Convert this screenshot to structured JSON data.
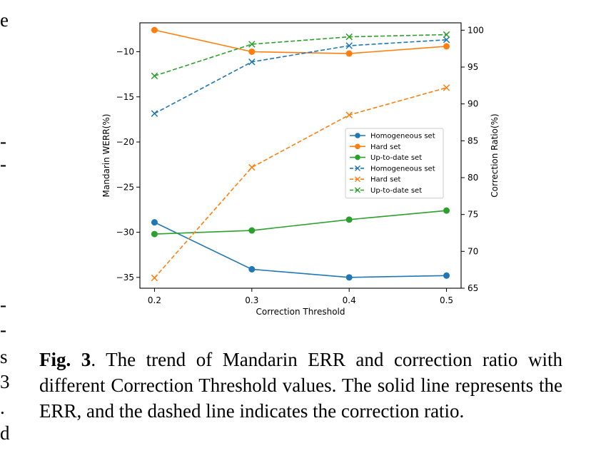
{
  "chart_data": {
    "type": "line",
    "x": [
      0.2,
      0.3,
      0.4,
      0.5
    ],
    "xticks": [
      "0.2",
      "0.3",
      "0.4",
      "0.5"
    ],
    "xlabel": "Correction Threshold",
    "ylabel_left": "Mandarin WERR(%)",
    "ylabel_right": "Correction Ratio(%)",
    "ylim_left": [
      -36.2,
      -6.8
    ],
    "ylim_right": [
      65,
      101
    ],
    "yticks_left": [
      -10,
      -15,
      -20,
      -25,
      -30,
      -35
    ],
    "yticks_right": [
      65,
      70,
      75,
      80,
      85,
      90,
      95,
      100
    ],
    "legend_position": "center-right",
    "grid": false,
    "series": [
      {
        "name": "Homogeneous set",
        "axis": "left",
        "style": "solid",
        "marker": "o",
        "color": "#1f77b4",
        "values": [
          -28.9,
          -34.1,
          -35.0,
          -34.8
        ]
      },
      {
        "name": "Hard set",
        "axis": "left",
        "style": "solid",
        "marker": "o",
        "color": "#ff7f0e",
        "values": [
          -7.6,
          -10.0,
          -10.2,
          -9.4
        ]
      },
      {
        "name": "Up-to-date set",
        "axis": "left",
        "style": "solid",
        "marker": "o",
        "color": "#2ca02c",
        "values": [
          -30.2,
          -29.8,
          -28.6,
          -27.6
        ]
      },
      {
        "name": "Homogeneous set",
        "axis": "right",
        "style": "dashed",
        "marker": "x",
        "color": "#1f77b4",
        "values": [
          88.7,
          95.7,
          97.9,
          98.7
        ]
      },
      {
        "name": "Hard set",
        "axis": "right",
        "style": "dashed",
        "marker": "x",
        "color": "#ff7f0e",
        "values": [
          66.4,
          81.4,
          88.5,
          92.2
        ]
      },
      {
        "name": "Up-to-date set",
        "axis": "right",
        "style": "dashed",
        "marker": "x",
        "color": "#2ca02c",
        "values": [
          93.8,
          98.1,
          99.1,
          99.4
        ]
      }
    ]
  },
  "caption": {
    "label": "Fig. 3",
    "text": ". The trend of Mandarin ERR and correction ratio with different Correction Threshold values.  The solid line represents the ERR, and the dashed line indicates the correction ratio."
  },
  "margin_fragments": [
    "e",
    "-",
    "-",
    "-",
    "-",
    "s",
    "3",
    ".",
    "d"
  ]
}
